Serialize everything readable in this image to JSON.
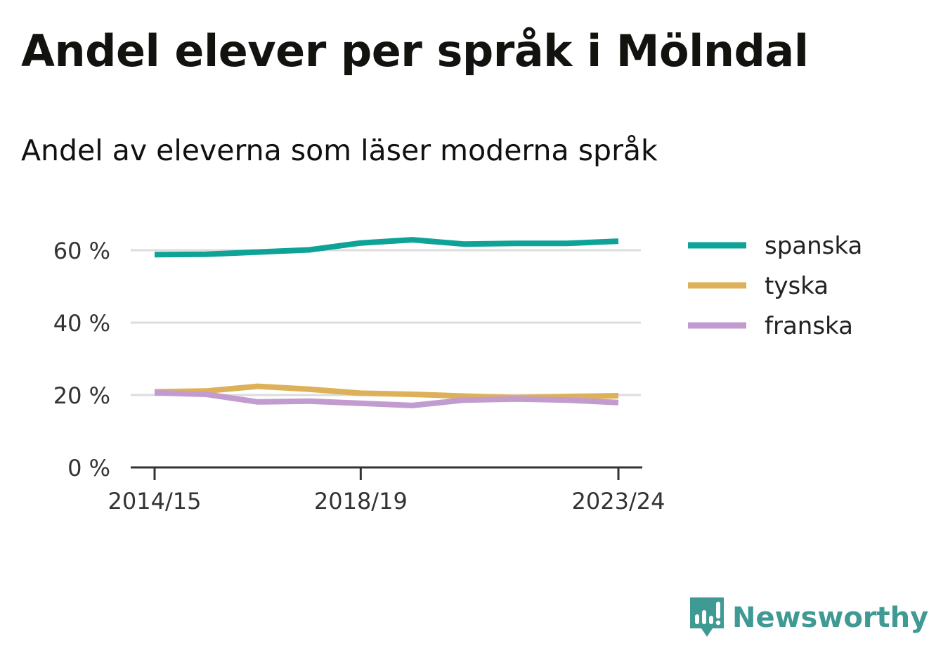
{
  "title": "Andel elever per språk i Mölndal",
  "subtitle": "Andel av eleverna som läser moderna språk",
  "brand": {
    "name": "Newsworthy",
    "icon": "bar-chart-speech-bubble-icon",
    "color": "#3f9a94"
  },
  "chart_data": {
    "type": "line",
    "x": [
      "2014/15",
      "2015/16",
      "2016/17",
      "2017/18",
      "2018/19",
      "2019/20",
      "2020/21",
      "2021/22",
      "2022/23",
      "2023/24"
    ],
    "x_tick_labels": [
      "2014/15",
      "2018/19",
      "2023/24"
    ],
    "y_ticks": [
      0,
      20,
      40,
      60
    ],
    "y_tick_labels": [
      "0 %",
      "20 %",
      "40 %",
      "60 %"
    ],
    "ylim": [
      0,
      70
    ],
    "grid": true,
    "legend_position": "right",
    "series": [
      {
        "name": "spanska",
        "color": "#0fa397",
        "values": [
          58.8,
          58.9,
          59.5,
          60.1,
          62.0,
          62.9,
          61.7,
          61.9,
          61.9,
          62.5
        ]
      },
      {
        "name": "tyska",
        "color": "#ddb15a",
        "values": [
          20.9,
          21.1,
          22.4,
          21.6,
          20.5,
          20.2,
          19.7,
          19.3,
          19.6,
          19.8
        ]
      },
      {
        "name": "franska",
        "color": "#c29bcf",
        "values": [
          20.6,
          20.2,
          18.1,
          18.3,
          17.7,
          17.1,
          18.6,
          18.9,
          18.6,
          17.9
        ]
      }
    ]
  }
}
